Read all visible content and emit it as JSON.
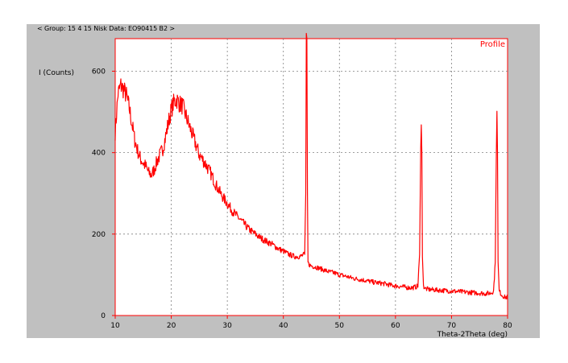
{
  "header": "< Group: 15 4 15 Nisk   Data: EO90415 B2 >",
  "chart_data": {
    "type": "line",
    "title": "",
    "legend": "Profile",
    "xlabel": "Theta-2Theta (deg)",
    "ylabel": "I (Counts)",
    "xlim": [
      10,
      80
    ],
    "ylim": [
      0,
      680
    ],
    "xticks": [
      10,
      20,
      30,
      40,
      50,
      60,
      70,
      80
    ],
    "yticks": [
      0,
      200,
      400,
      600
    ],
    "grid": true,
    "series": [
      {
        "name": "Profile",
        "color": "#ff0000",
        "x": [
          10,
          10.5,
          11,
          11.5,
          12,
          12.5,
          13,
          13.5,
          14,
          14.5,
          15,
          15.5,
          16,
          16.5,
          17,
          17.5,
          18,
          18.5,
          19,
          19.5,
          20,
          20.5,
          21,
          21.5,
          22,
          22.5,
          23,
          23.5,
          24,
          24.5,
          25,
          26,
          27,
          28,
          29,
          30,
          31,
          32,
          33,
          34,
          35,
          36,
          37,
          38,
          39,
          40,
          41,
          42,
          43,
          43.8,
          44,
          44.1,
          44.2,
          44.3,
          44.4,
          44.6,
          45,
          46,
          47,
          48,
          49,
          50,
          51,
          52,
          53,
          54,
          55,
          56,
          57,
          58,
          59,
          60,
          61,
          62,
          63,
          64,
          64.3,
          64.5,
          64.6,
          64.7,
          64.8,
          65,
          65.3,
          66,
          67,
          68,
          69,
          70,
          71,
          72,
          73,
          74,
          75,
          76,
          77,
          77.5,
          77.8,
          78,
          78.1,
          78.2,
          78.3,
          78.5,
          79,
          79.5,
          80
        ],
        "y": [
          450,
          545,
          565,
          555,
          540,
          510,
          470,
          430,
          405,
          385,
          375,
          365,
          350,
          345,
          360,
          380,
          395,
          410,
          440,
          475,
          505,
          525,
          530,
          520,
          515,
          495,
          475,
          455,
          435,
          415,
          395,
          375,
          350,
          320,
          295,
          275,
          255,
          240,
          225,
          210,
          200,
          190,
          182,
          175,
          165,
          158,
          150,
          145,
          145,
          150,
          300,
          680,
          680,
          300,
          130,
          125,
          122,
          118,
          113,
          108,
          105,
          100,
          97,
          93,
          90,
          88,
          85,
          82,
          80,
          78,
          75,
          73,
          71,
          69,
          68,
          72,
          150,
          400,
          490,
          400,
          150,
          72,
          66,
          64,
          63,
          62,
          61,
          60,
          59,
          58,
          57,
          56,
          55,
          54,
          55,
          60,
          130,
          420,
          520,
          400,
          130,
          60,
          50,
          45,
          45
        ]
      }
    ]
  }
}
